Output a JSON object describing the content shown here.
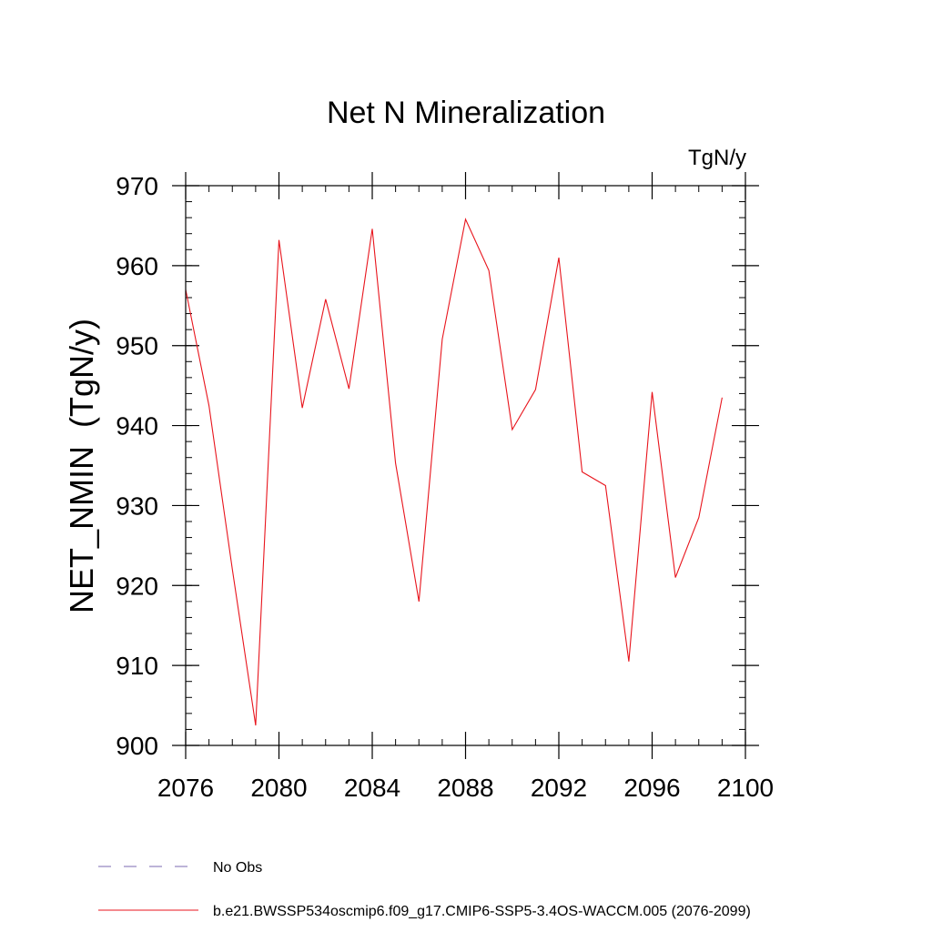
{
  "chart_data": {
    "type": "line",
    "title": "Net N Mineralization",
    "units": "TgN/y",
    "ylabel": "NET_NMIN  (TgN/y)",
    "xlabel": "",
    "xlim": [
      2076,
      2100
    ],
    "ylim": [
      900,
      970
    ],
    "xticks": [
      2076,
      2080,
      2084,
      2088,
      2092,
      2096,
      2100
    ],
    "yticks": [
      900,
      910,
      920,
      930,
      940,
      950,
      960,
      970
    ],
    "series": [
      {
        "name": "b.e21.BWSSP534oscmip6.f09_g17.CMIP6-SSP5-3.4OS-WACCM.005 (2076-2099)",
        "color": "#e8141c",
        "x": [
          2076,
          2077,
          2078,
          2079,
          2080,
          2081,
          2082,
          2083,
          2084,
          2085,
          2086,
          2087,
          2088,
          2089,
          2090,
          2091,
          2092,
          2093,
          2094,
          2095,
          2096,
          2097,
          2098,
          2099
        ],
        "values": [
          957.0,
          942.5,
          922.0,
          902.5,
          963.2,
          942.2,
          955.8,
          944.6,
          964.6,
          935.3,
          918.0,
          950.8,
          965.8,
          959.4,
          939.5,
          944.5,
          961.0,
          934.2,
          932.5,
          910.5,
          944.2,
          921.0,
          928.5,
          943.5
        ]
      }
    ],
    "legend": [
      {
        "label": "No Obs",
        "style": "dashed",
        "color": "#7b68b0"
      },
      {
        "label": "b.e21.BWSSP534oscmip6.f09_g17.CMIP6-SSP5-3.4OS-WACCM.005 (2076-2099)",
        "style": "solid",
        "color": "#e8141c"
      }
    ],
    "legend_position": "bottom-left"
  }
}
